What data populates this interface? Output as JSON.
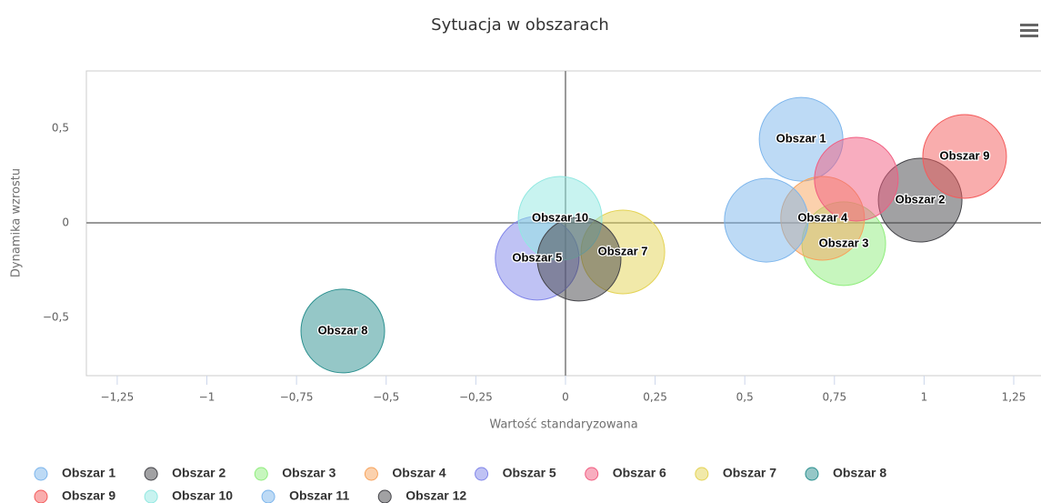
{
  "chart_data": {
    "type": "bubble",
    "title": "Sytuacja w obszarach",
    "x_label": "Wartość standaryzowana",
    "y_label": "Dynamika wzrostu",
    "xlim": [
      -1.336,
      1.326
    ],
    "ylim": [
      -0.808,
      0.803
    ],
    "xticks": [
      {
        "value": -1.25,
        "label": "−1,25"
      },
      {
        "value": -1,
        "label": "−1"
      },
      {
        "value": -0.75,
        "label": "−0,75"
      },
      {
        "value": -0.5,
        "label": "−0,5"
      },
      {
        "value": -0.25,
        "label": "−0,25"
      },
      0,
      {
        "value": 0.25,
        "label": "0,25"
      },
      {
        "value": 0.5,
        "label": "0,5"
      },
      {
        "value": 0.75,
        "label": "0,75"
      },
      1,
      {
        "value": 1.25,
        "label": "1,25"
      }
    ],
    "yticks": [
      {
        "value": -0.5,
        "label": "−0,5"
      },
      0,
      {
        "value": 0.5,
        "label": "0,5"
      }
    ],
    "series": [
      {
        "name": "Obszar 1",
        "color": "#7cb5ec",
        "x": 0.657,
        "y": 0.442,
        "z": 1
      },
      {
        "name": "Obszar 2",
        "color": "#434348",
        "x": 0.989,
        "y": 0.12,
        "z": 1
      },
      {
        "name": "Obszar 3",
        "color": "#90ed7d",
        "x": 0.776,
        "y": -0.11,
        "z": 1
      },
      {
        "name": "Obszar 4",
        "color": "#f7a35c",
        "x": 0.717,
        "y": 0.024,
        "z": 1
      },
      {
        "name": "Obszar 5",
        "color": "#8085e9",
        "x": -0.079,
        "y": -0.187,
        "z": 1
      },
      {
        "name": "Obszar 6",
        "color": "#f15c80",
        "x": 0.811,
        "y": 0.231,
        "z": 1,
        "data_labels": false
      },
      {
        "name": "Obszar 7",
        "color": "#e4d354",
        "x": 0.16,
        "y": -0.154,
        "z": 1
      },
      {
        "name": "Obszar 8",
        "color": "#2b908f",
        "x": -0.621,
        "y": -0.572,
        "z": 1
      },
      {
        "name": "Obszar 9",
        "color": "#f45b5b",
        "x": 1.113,
        "y": 0.351,
        "z": 1
      },
      {
        "name": "Obszar 10",
        "color": "#91e8e1",
        "x": -0.015,
        "y": 0.024,
        "z": 1
      },
      {
        "name": "Obszar 11",
        "color": "#7cb5ec",
        "x": 0.56,
        "y": 0.014,
        "z": 1,
        "data_labels": false
      },
      {
        "name": "Obszar 12",
        "color": "#434348",
        "x": 0.038,
        "y": -0.192,
        "z": 1,
        "data_labels": false
      }
    ]
  }
}
